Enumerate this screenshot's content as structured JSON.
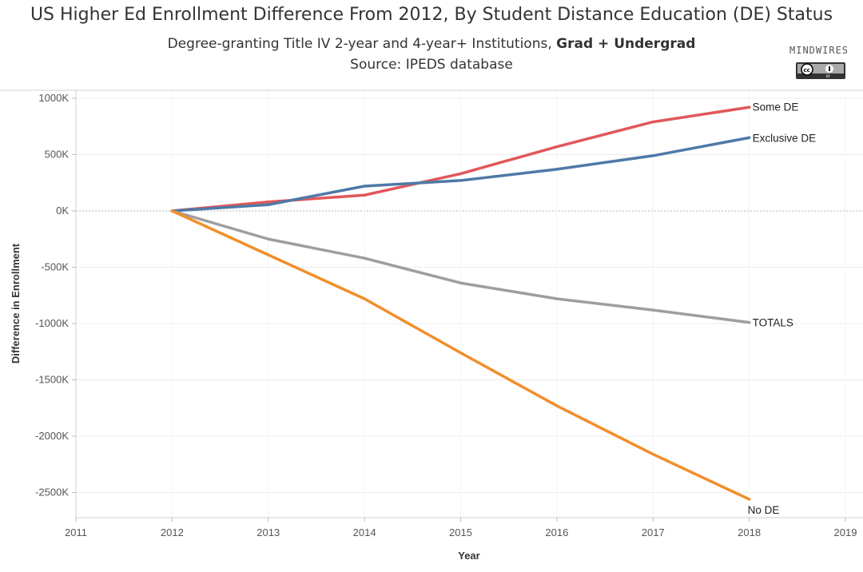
{
  "header": {
    "title": "US Higher Ed Enrollment Difference From 2012, By Student Distance Education (DE) Status",
    "subtitle_prefix": "Degree-granting Title IV 2-year and 4-year+ Institutions, ",
    "subtitle_bold": "Grad + Undergrad",
    "source": "Source: IPEDS database"
  },
  "logo": {
    "text": "MINDWIRES",
    "license_icon": "cc-by-icon"
  },
  "chart_data": {
    "type": "line",
    "title": "US Higher Ed Enrollment Difference From 2012, By Student Distance Education (DE) Status",
    "xlabel": "Year",
    "ylabel": "Difference in Enrollment",
    "x": [
      2012,
      2013,
      2014,
      2015,
      2016,
      2017,
      2018
    ],
    "xlim": [
      2011,
      2019
    ],
    "ylim": [
      -2600000,
      1050000
    ],
    "x_ticks": [
      2011,
      2012,
      2013,
      2014,
      2015,
      2016,
      2017,
      2018,
      2019
    ],
    "y_ticks": [
      {
        "value": 1000000,
        "label": "1000K"
      },
      {
        "value": 500000,
        "label": "500K"
      },
      {
        "value": 0,
        "label": "0K"
      },
      {
        "value": -500000,
        "label": "-500K"
      },
      {
        "value": -1000000,
        "label": "-1000K"
      },
      {
        "value": -1500000,
        "label": "-1500K"
      },
      {
        "value": -2000000,
        "label": "-2000K"
      },
      {
        "value": -2500000,
        "label": "-2500K"
      }
    ],
    "series": [
      {
        "name": "Some DE",
        "color": "#e15759",
        "values": [
          0,
          80000,
          140000,
          330000,
          570000,
          790000,
          920000
        ],
        "label_pos": "above"
      },
      {
        "name": "Exclusive DE",
        "color": "#4e79a7",
        "values": [
          0,
          55000,
          220000,
          270000,
          370000,
          490000,
          650000
        ],
        "label_pos": "right"
      },
      {
        "name": "TOTALS",
        "color": "#9e9e9e",
        "values": [
          0,
          -250000,
          -420000,
          -640000,
          -780000,
          -880000,
          -990000
        ],
        "label_pos": "right"
      },
      {
        "name": "No DE",
        "color": "#f28e2b",
        "values": [
          0,
          -390000,
          -780000,
          -1260000,
          -1730000,
          -2160000,
          -2560000
        ],
        "label_pos": "below"
      }
    ]
  }
}
